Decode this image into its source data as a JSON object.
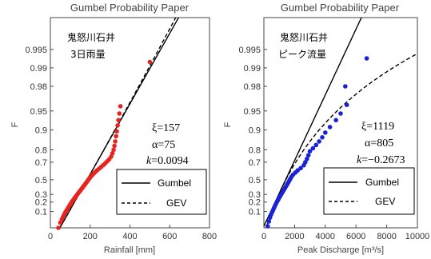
{
  "chart_data": [
    {
      "type": "scatter",
      "title": "Gumbel Probability Paper",
      "xlabel": "Rainfall [mm]",
      "ylabel": "F",
      "xlim": [
        0,
        800
      ],
      "x_ticks": [
        "0",
        "200",
        "400",
        "600",
        "800"
      ],
      "y_scale": "gumbel",
      "y_ticks": [
        "0.1",
        "0.2",
        "0.3",
        "0.5",
        "0.7",
        "0.8",
        "0.9",
        "0.95",
        "0.98",
        "0.99",
        "0.995"
      ],
      "site_label": [
        "鬼怒川石井",
        "3日雨量"
      ],
      "params": {
        "xi": "157",
        "alpha": "75",
        "k": "0.0094"
      },
      "point_color": "#e8231e",
      "points": [
        [
          40,
          0.014
        ],
        [
          50,
          0.03
        ],
        [
          58,
          0.045
        ],
        [
          64,
          0.06
        ],
        [
          70,
          0.078
        ],
        [
          76,
          0.095
        ],
        [
          82,
          0.113
        ],
        [
          88,
          0.132
        ],
        [
          94,
          0.15
        ],
        [
          99,
          0.168
        ],
        [
          104,
          0.187
        ],
        [
          109,
          0.205
        ],
        [
          114,
          0.222
        ],
        [
          119,
          0.24
        ],
        [
          124,
          0.258
        ],
        [
          129,
          0.276
        ],
        [
          134,
          0.294
        ],
        [
          139,
          0.312
        ],
        [
          144,
          0.33
        ],
        [
          149,
          0.348
        ],
        [
          154,
          0.366
        ],
        [
          159,
          0.384
        ],
        [
          164,
          0.402
        ],
        [
          169,
          0.42
        ],
        [
          174,
          0.438
        ],
        [
          179,
          0.456
        ],
        [
          184,
          0.474
        ],
        [
          189,
          0.492
        ],
        [
          194,
          0.51
        ],
        [
          199,
          0.528
        ],
        [
          205,
          0.546
        ],
        [
          212,
          0.564
        ],
        [
          219,
          0.582
        ],
        [
          227,
          0.6
        ],
        [
          236,
          0.618
        ],
        [
          246,
          0.636
        ],
        [
          256,
          0.654
        ],
        [
          266,
          0.672
        ],
        [
          276,
          0.69
        ],
        [
          286,
          0.708
        ],
        [
          296,
          0.726
        ],
        [
          306,
          0.75
        ],
        [
          312,
          0.775
        ],
        [
          318,
          0.8
        ],
        [
          322,
          0.825
        ],
        [
          326,
          0.85
        ],
        [
          330,
          0.875
        ],
        [
          334,
          0.895
        ],
        [
          338,
          0.915
        ],
        [
          342,
          0.93
        ],
        [
          347,
          0.945
        ],
        [
          352,
          0.958
        ],
        [
          500,
          0.992
        ]
      ],
      "series": [
        {
          "name": "Gumbel",
          "style": "solid",
          "xi": 157,
          "alpha": 75,
          "k": 0
        },
        {
          "name": "GEV",
          "style": "dashed",
          "xi": 157,
          "alpha": 75,
          "k": 0.0094
        }
      ]
    },
    {
      "type": "scatter",
      "title": "Gumbel Probability Paper",
      "xlabel": "Peak Discharge [m³/s]",
      "ylabel": "F",
      "xlim": [
        0,
        10000
      ],
      "x_ticks": [
        "0",
        "2000",
        "4000",
        "6000",
        "8000",
        "10000"
      ],
      "y_scale": "gumbel",
      "y_ticks": [
        "0.1",
        "0.2",
        "0.3",
        "0.5",
        "0.7",
        "0.8",
        "0.9",
        "0.95",
        "0.98",
        "0.99",
        "0.995"
      ],
      "site_label": [
        "鬼怒川石井",
        "ピーク流量"
      ],
      "params": {
        "xi": "1119",
        "alpha": "805",
        "k": "−0.2673"
      },
      "point_color": "#1a22d6",
      "points": [
        [
          250,
          0.018
        ],
        [
          330,
          0.035
        ],
        [
          400,
          0.055
        ],
        [
          470,
          0.075
        ],
        [
          540,
          0.095
        ],
        [
          610,
          0.115
        ],
        [
          680,
          0.14
        ],
        [
          750,
          0.165
        ],
        [
          820,
          0.19
        ],
        [
          890,
          0.215
        ],
        [
          960,
          0.24
        ],
        [
          1030,
          0.265
        ],
        [
          1100,
          0.29
        ],
        [
          1170,
          0.315
        ],
        [
          1240,
          0.34
        ],
        [
          1310,
          0.365
        ],
        [
          1380,
          0.39
        ],
        [
          1450,
          0.415
        ],
        [
          1520,
          0.44
        ],
        [
          1590,
          0.465
        ],
        [
          1660,
          0.49
        ],
        [
          1730,
          0.515
        ],
        [
          1800,
          0.54
        ],
        [
          1900,
          0.565
        ],
        [
          2050,
          0.59
        ],
        [
          2200,
          0.615
        ],
        [
          2400,
          0.64
        ],
        [
          2600,
          0.67
        ],
        [
          2700,
          0.7
        ],
        [
          2800,
          0.73
        ],
        [
          2900,
          0.76
        ],
        [
          3000,
          0.79
        ],
        [
          3200,
          0.81
        ],
        [
          3400,
          0.83
        ],
        [
          3600,
          0.85
        ],
        [
          3800,
          0.87
        ],
        [
          4000,
          0.89
        ],
        [
          4300,
          0.91
        ],
        [
          4700,
          0.93
        ],
        [
          5000,
          0.945
        ],
        [
          5400,
          0.96
        ],
        [
          5300,
          0.98
        ],
        [
          6700,
          0.993
        ]
      ],
      "series": [
        {
          "name": "Gumbel",
          "style": "solid",
          "xi": 1119,
          "alpha": 805,
          "k": 0
        },
        {
          "name": "GEV",
          "style": "dashed",
          "xi": 1119,
          "alpha": 805,
          "k": -0.2673
        }
      ]
    }
  ]
}
